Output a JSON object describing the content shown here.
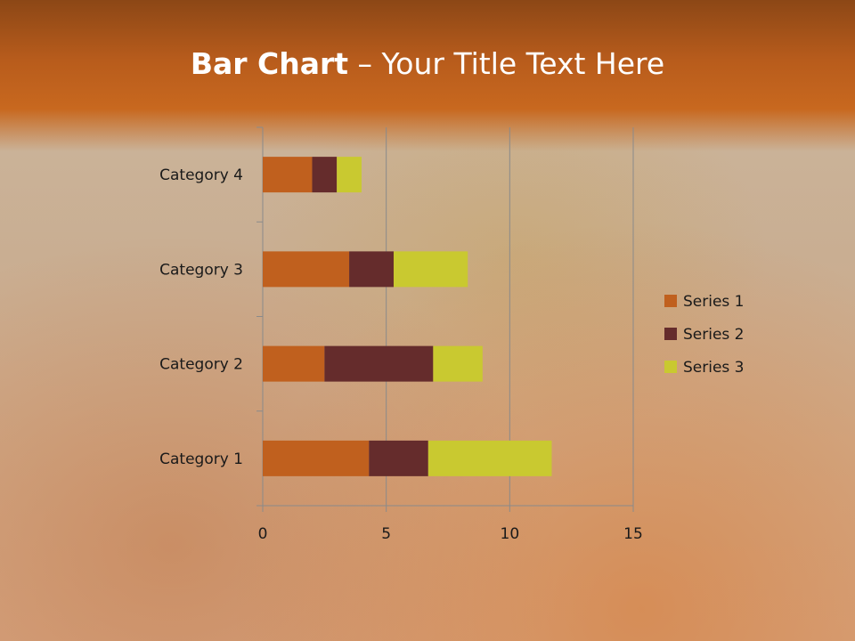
{
  "title": {
    "bold": "Bar Chart",
    "rest": " – Your Title Text Here"
  },
  "chart_data": {
    "type": "bar",
    "orientation": "horizontal",
    "stacked": true,
    "categories": [
      "Category 1",
      "Category 2",
      "Category 3",
      "Category 4"
    ],
    "series": [
      {
        "name": "Series 1",
        "values": [
          4.3,
          2.5,
          3.5,
          2.0
        ],
        "color": "#c0601e"
      },
      {
        "name": "Series 2",
        "values": [
          2.4,
          4.4,
          1.8,
          1.0
        ],
        "color": "#652c2c"
      },
      {
        "name": "Series 3",
        "values": [
          5.0,
          2.0,
          3.0,
          1.0
        ],
        "color": "#c9c930"
      }
    ],
    "xlim": [
      0,
      15
    ],
    "xticks": [
      "0",
      "5",
      "10",
      "15"
    ],
    "grid": "vertical major",
    "legend": "right"
  }
}
